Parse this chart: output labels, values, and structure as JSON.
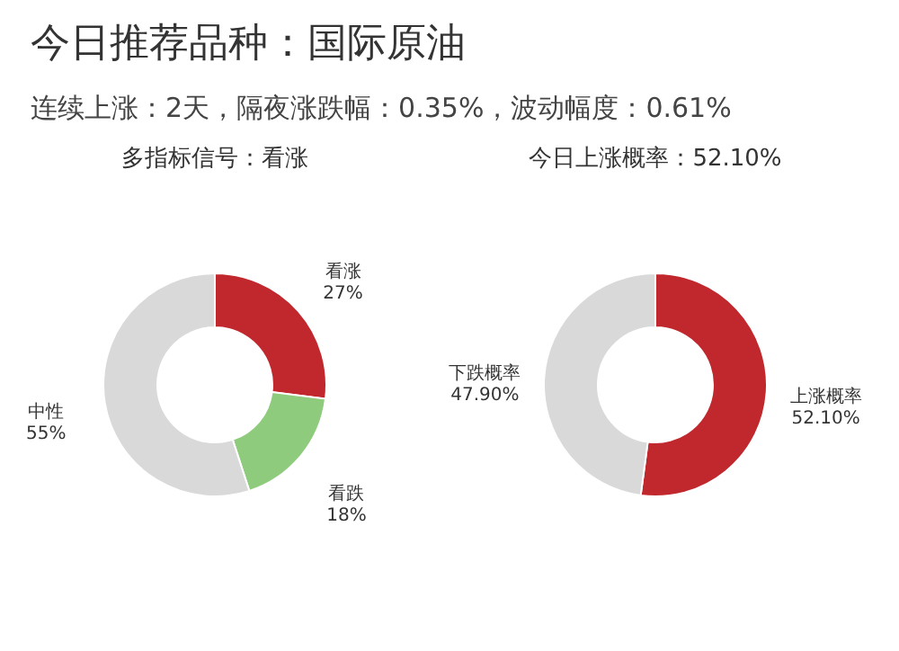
{
  "chart_data": [
    {
      "type": "other",
      "title": "今日推荐品种：国际原油",
      "subtitle": "连续上涨：2天，隔夜涨跌幅：0.35%，波动幅度：0.61%"
    },
    {
      "type": "donut",
      "title": "多指标信号：看涨",
      "categories": [
        "看涨",
        "看跌",
        "中性"
      ],
      "values": [
        27,
        18,
        55
      ],
      "value_labels": [
        "27%",
        "18%",
        "55%"
      ],
      "colors": [
        "#c0282d",
        "#8fcb7c",
        "#d9d9d9"
      ]
    },
    {
      "type": "donut",
      "title": "今日上涨概率：52.10%",
      "categories": [
        "上涨概率",
        "下跌概率"
      ],
      "values": [
        52.1,
        47.9
      ],
      "value_labels": [
        "52.10%",
        "47.90%"
      ],
      "colors": [
        "#c0282d",
        "#d9d9d9"
      ]
    }
  ]
}
